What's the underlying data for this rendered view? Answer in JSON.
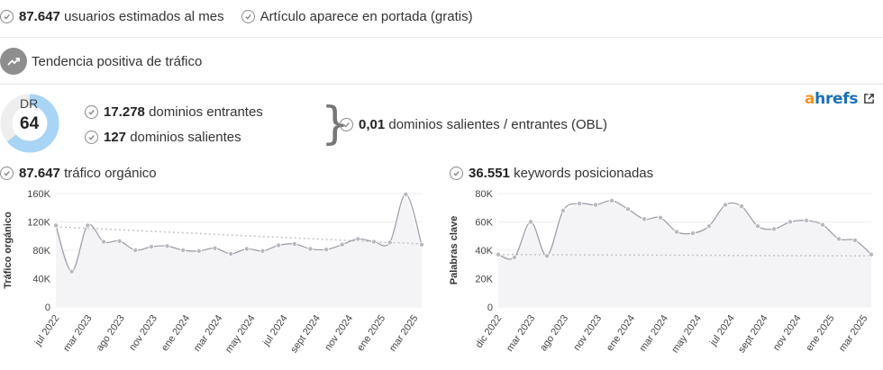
{
  "top": {
    "users_value": "87.647",
    "users_label": "usuarios estimados al mes",
    "frontpage_label": "Artículo aparece en portada (gratis)"
  },
  "trend": {
    "label": "Tendencia positiva de tráfico",
    "icon": "trending-up-icon"
  },
  "dr": {
    "label": "DR",
    "value": "64",
    "score": 64
  },
  "links": {
    "incoming_value": "17.278",
    "incoming_label": "dominios entrantes",
    "outgoing_value": "127",
    "outgoing_label": "dominios salientes",
    "obl_value": "0,01",
    "obl_label": "dominios salientes / entrantes (OBL)"
  },
  "brand": {
    "part1": "a",
    "part2": "hrefs"
  },
  "colors": {
    "accent": "#f7931e",
    "brand_blue": "#1a6fb5",
    "dr_ring": "#a8d4f5",
    "line": "#9a9aa4",
    "fill": "#f4f4f7"
  },
  "traffic": {
    "value": "87.647",
    "label": "tráfico orgánico"
  },
  "keywords": {
    "value": "36.551",
    "label": "keywords posicionadas"
  },
  "chart_data": [
    {
      "type": "line",
      "ylabel": "Tráfico orgánico",
      "ylim": [
        0,
        160000
      ],
      "yticks": [
        0,
        40000,
        80000,
        120000,
        160000
      ],
      "ytick_labels": [
        "0",
        "40K",
        "80K",
        "120K",
        "160K"
      ],
      "xtick_labels": [
        "jul 2022",
        "mar 2023",
        "ago 2023",
        "nov 2023",
        "ene 2024",
        "mar 2024",
        "may 2024",
        "jul 2024",
        "sept 2024",
        "nov 2024",
        "ene 2025",
        "mar 2025"
      ],
      "values": [
        115000,
        50000,
        115000,
        92000,
        93000,
        80000,
        85000,
        86000,
        80000,
        79000,
        83000,
        75000,
        82000,
        79000,
        87000,
        89000,
        82000,
        81000,
        88000,
        96000,
        92000,
        91000,
        159000,
        88000
      ],
      "trend": [
        113000,
        89000
      ],
      "grid": true
    },
    {
      "type": "line",
      "ylabel": "Palabras clave",
      "ylim": [
        0,
        80000
      ],
      "yticks": [
        0,
        20000,
        40000,
        60000,
        80000
      ],
      "ytick_labels": [
        "0",
        "20K",
        "40K",
        "60K",
        "80K"
      ],
      "xtick_labels": [
        "dic 2022",
        "mar 2023",
        "ago 2023",
        "nov 2023",
        "ene 2024",
        "mar 2024",
        "may 2024",
        "jul 2024",
        "sept 2024",
        "nov 2024",
        "ene 2025",
        "mar 2025"
      ],
      "values": [
        37000,
        35000,
        60000,
        36000,
        68000,
        73000,
        72000,
        75000,
        69000,
        62000,
        63000,
        53000,
        52000,
        57000,
        72000,
        71000,
        57000,
        55000,
        60000,
        61000,
        58000,
        48000,
        47000,
        37000
      ],
      "trend": [
        37000,
        36000
      ],
      "grid": true
    }
  ]
}
